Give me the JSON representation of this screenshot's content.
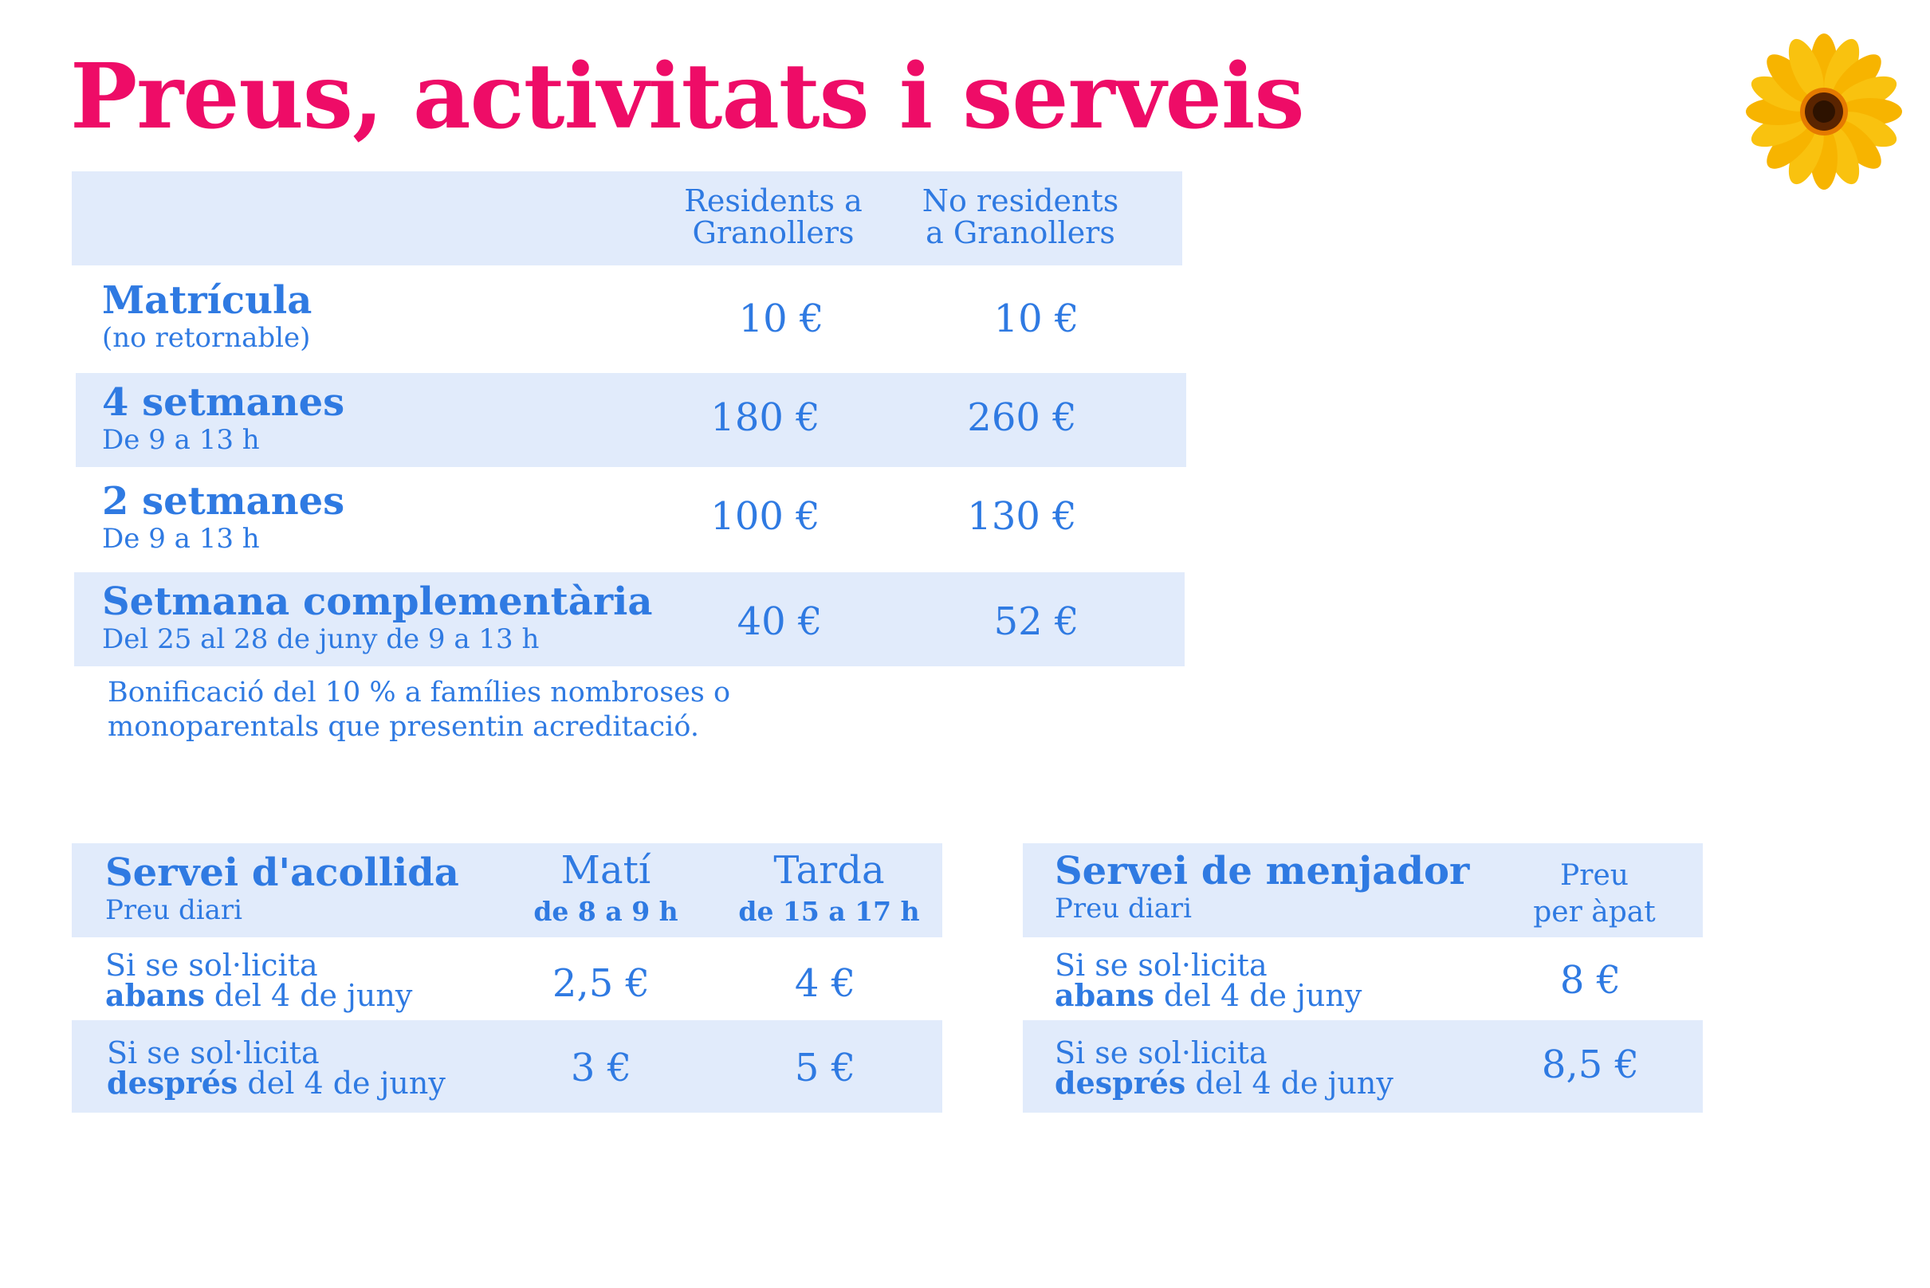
{
  "title": "Preus, activitats i serveis",
  "colors": {
    "title": "#ee0c67",
    "text": "#2f7ae2",
    "band": "#e1ebfb"
  },
  "decor": {
    "flower_icon": "flower-icon"
  },
  "main_table": {
    "col1_header": [
      "Residents a",
      "Granollers"
    ],
    "col2_header": [
      "No residents",
      "a Granollers"
    ],
    "rows": [
      {
        "label": "Matrícula",
        "sub": "(no retornable)",
        "resident": "10 €",
        "non_resident": "10 €"
      },
      {
        "label": "4 setmanes",
        "sub": "De 9 a 13 h",
        "resident": "180 €",
        "non_resident": "260 €"
      },
      {
        "label": "2 setmanes",
        "sub": "De 9 a 13 h",
        "resident": "100 €",
        "non_resident": "130 €"
      },
      {
        "label": "Setmana complementària",
        "sub": "Del 25 al 28 de juny de 9 a 13 h",
        "resident": "40 €",
        "non_resident": "52 €"
      }
    ],
    "note": [
      "Bonificació del 10 % a famílies nombroses o",
      "monoparentals que presentin acreditació."
    ]
  },
  "acollida": {
    "title": "Servei d'acollida",
    "subtitle": "Preu diari",
    "col1": {
      "name": "Matí",
      "time": "de 8 a 9 h"
    },
    "col2": {
      "name": "Tarda",
      "time": "de 15 a 17 h"
    },
    "rows": [
      {
        "line1": "Si se sol·licita",
        "bold": "abans",
        "rest": " del 4 de juny",
        "mati": "2,5 €",
        "tarda": "4 €"
      },
      {
        "line1": "Si se sol·licita",
        "bold": "després",
        "rest": " del 4 de juny",
        "mati": "3 €",
        "tarda": "5 €"
      }
    ]
  },
  "menjador": {
    "title": "Servei de menjador",
    "subtitle": "Preu diari",
    "col": [
      "Preu",
      "per àpat"
    ],
    "rows": [
      {
        "line1": "Si se sol·licita",
        "bold": "abans",
        "rest": " del 4 de juny",
        "price": "8 €"
      },
      {
        "line1": "Si se sol·licita",
        "bold": "després",
        "rest": " del 4 de juny",
        "price": "8,5 €"
      }
    ]
  }
}
